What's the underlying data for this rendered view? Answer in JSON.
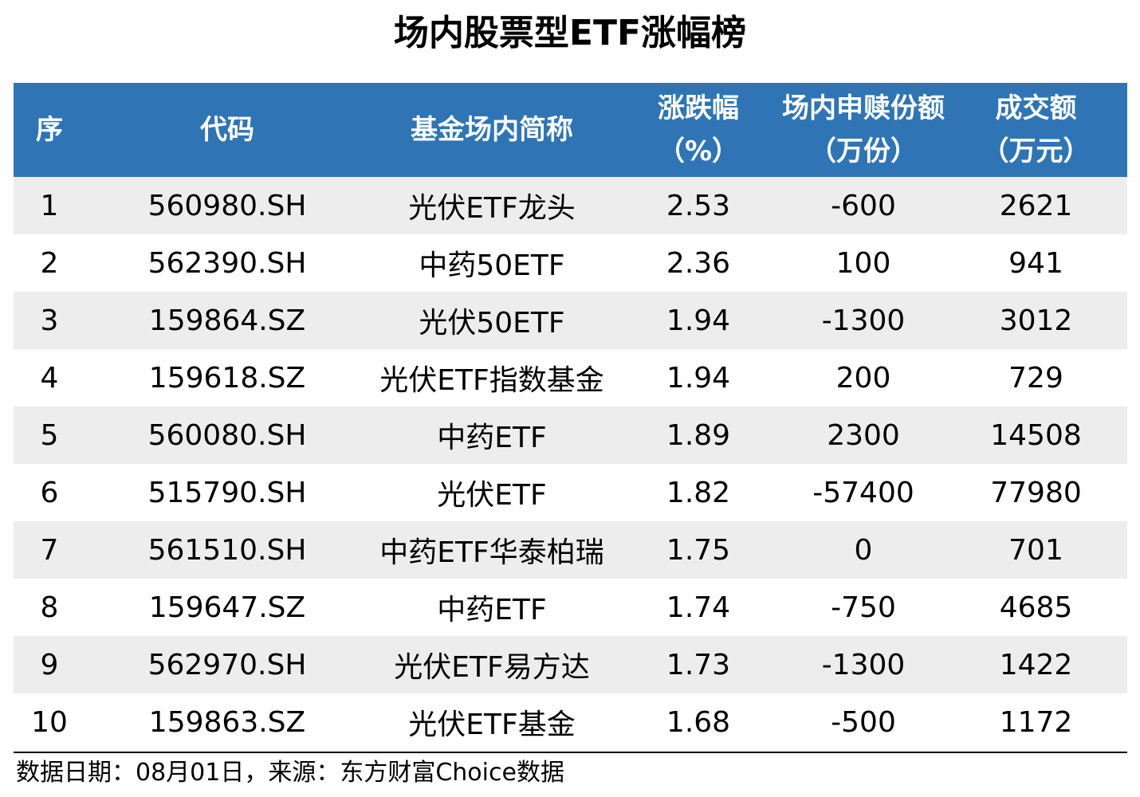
{
  "title": "场内股票型ETF涨幅榜",
  "chart_data": {
    "type": "table",
    "title": "场内股票型ETF涨幅榜",
    "columns": [
      {
        "key": "rank",
        "label_lines": [
          "序"
        ]
      },
      {
        "key": "code",
        "label_lines": [
          "代码"
        ]
      },
      {
        "key": "name",
        "label_lines": [
          "基金场内简称"
        ]
      },
      {
        "key": "change_pct",
        "label_lines": [
          "涨跌幅",
          "（%）"
        ]
      },
      {
        "key": "share_change",
        "label_lines": [
          "场内申赎份额",
          "（万份）"
        ]
      },
      {
        "key": "turnover",
        "label_lines": [
          "成交额",
          "（万元）"
        ]
      }
    ],
    "rows": [
      {
        "rank": "1",
        "code": "560980.SH",
        "name": "光伏ETF龙头",
        "change_pct": "2.53",
        "share_change": "-600",
        "turnover": "2621"
      },
      {
        "rank": "2",
        "code": "562390.SH",
        "name": "中药50ETF",
        "change_pct": "2.36",
        "share_change": "100",
        "turnover": "941"
      },
      {
        "rank": "3",
        "code": "159864.SZ",
        "name": "光伏50ETF",
        "change_pct": "1.94",
        "share_change": "-1300",
        "turnover": "3012"
      },
      {
        "rank": "4",
        "code": "159618.SZ",
        "name": "光伏ETF指数基金",
        "change_pct": "1.94",
        "share_change": "200",
        "turnover": "729"
      },
      {
        "rank": "5",
        "code": "560080.SH",
        "name": "中药ETF",
        "change_pct": "1.89",
        "share_change": "2300",
        "turnover": "14508"
      },
      {
        "rank": "6",
        "code": "515790.SH",
        "name": "光伏ETF",
        "change_pct": "1.82",
        "share_change": "-57400",
        "turnover": "77980"
      },
      {
        "rank": "7",
        "code": "561510.SH",
        "name": "中药ETF华泰柏瑞",
        "change_pct": "1.75",
        "share_change": "0",
        "turnover": "701"
      },
      {
        "rank": "8",
        "code": "159647.SZ",
        "name": "中药ETF",
        "change_pct": "1.74",
        "share_change": "-750",
        "turnover": "4685"
      },
      {
        "rank": "9",
        "code": "562970.SH",
        "name": "光伏ETF易方达",
        "change_pct": "1.73",
        "share_change": "-1300",
        "turnover": "1422"
      },
      {
        "rank": "10",
        "code": "159863.SZ",
        "name": "光伏ETF基金",
        "change_pct": "1.68",
        "share_change": "-500",
        "turnover": "1172"
      }
    ],
    "colors": {
      "header_bg": "#2f75b5",
      "header_text": "#ffffff",
      "row_band": "#ededed",
      "row_plain": "#ffffff"
    }
  },
  "footer": "数据日期：08月01日，来源：东方财富Choice数据"
}
